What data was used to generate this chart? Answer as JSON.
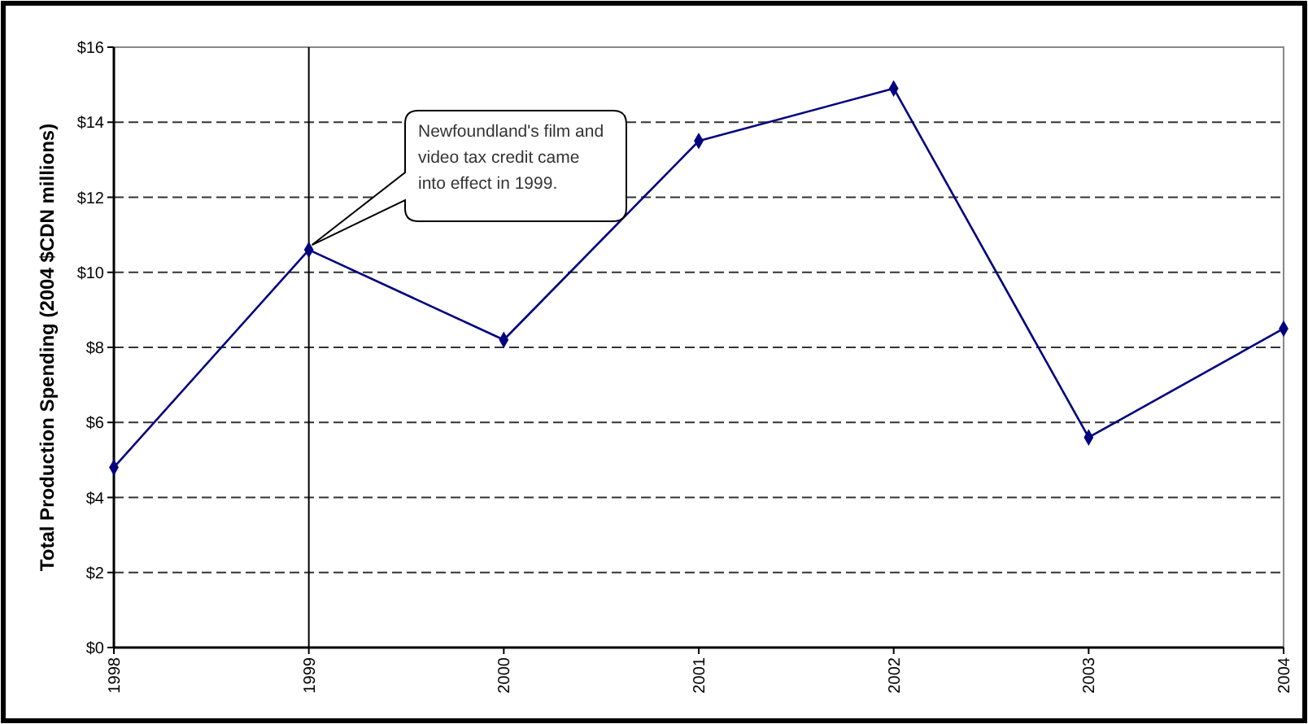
{
  "chart_data": {
    "type": "line",
    "ylabel": "Total Production Spending (2004 $CDN millions)",
    "x": [
      1998,
      1999,
      2000,
      2001,
      2002,
      2003,
      2004
    ],
    "series": [
      {
        "color": "#000080",
        "values": [
          4.8,
          10.6,
          8.2,
          13.5,
          14.9,
          5.6,
          8.5
        ]
      }
    ],
    "xlim": [
      1998,
      2004
    ],
    "xticks": [
      1998,
      1999,
      2000,
      2001,
      2002,
      2003,
      2004
    ],
    "ylim": [
      0,
      16
    ],
    "yticks": [
      {
        "value": 0,
        "label": "$0"
      },
      {
        "value": 2,
        "label": "$2"
      },
      {
        "value": 4,
        "label": "$4"
      },
      {
        "value": 6,
        "label": "$6"
      },
      {
        "value": 8,
        "label": "$8"
      },
      {
        "value": 10,
        "label": "$10"
      },
      {
        "value": 12,
        "label": "$12"
      },
      {
        "value": 14,
        "label": "$14"
      },
      {
        "value": 16,
        "label": "$16"
      }
    ],
    "grid": "y",
    "marker": "diamond",
    "line_style": "solid",
    "ref_lines": [
      {
        "axis": "x",
        "value": 1999,
        "color": "#000000"
      }
    ],
    "annotations": [
      "Newfoundland's film and video tax credit came into effect in 1999."
    ]
  }
}
